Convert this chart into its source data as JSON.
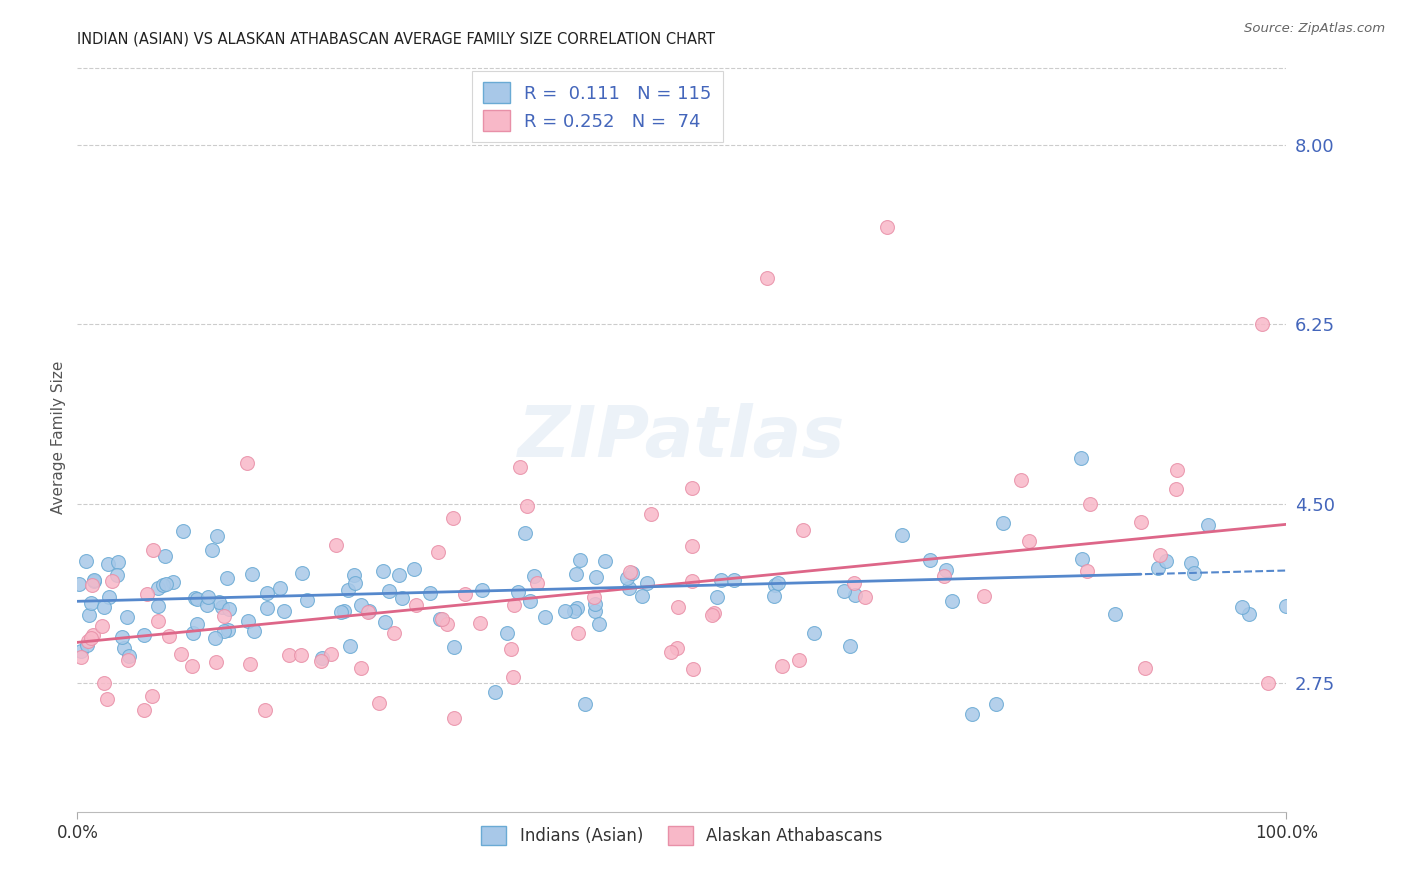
{
  "title": "INDIAN (ASIAN) VS ALASKAN ATHABASCAN AVERAGE FAMILY SIZE CORRELATION CHART",
  "source": "Source: ZipAtlas.com",
  "ylabel": "Average Family Size",
  "xmin": 0.0,
  "xmax": 1.0,
  "ymin": 1.5,
  "ymax": 8.8,
  "yticks": [
    2.75,
    4.5,
    6.25,
    8.0
  ],
  "ytick_labels": [
    "2.75",
    "4.50",
    "6.25",
    "8.00"
  ],
  "blue_fill": "#a8c8e8",
  "blue_edge": "#6aaad4",
  "pink_fill": "#f8b8c8",
  "pink_edge": "#e890a8",
  "blue_line": "#5588cc",
  "pink_line": "#dd6688",
  "legend_blue_R": "0.111",
  "legend_blue_N": "115",
  "legend_pink_R": "0.252",
  "legend_pink_N": "74",
  "watermark_text": "ZIPatlas",
  "grid_color": "#cccccc",
  "title_color": "#222222",
  "axis_label_color": "#4466bb",
  "source_color": "#666666"
}
